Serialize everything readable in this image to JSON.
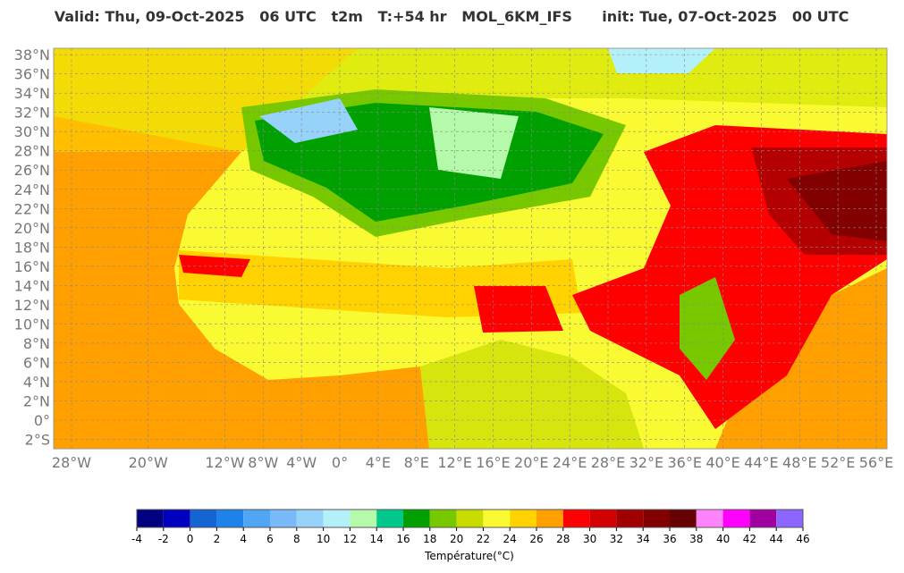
{
  "header": {
    "title": "Valid: Thu, 09-Oct-2025   06 UTC   t2m   T:+54 hr   MOL_6KM_IFS      init: Tue, 07-Oct-2025   00 UTC"
  },
  "map": {
    "lat_ticks": [
      {
        "value": 38,
        "label": "38°N"
      },
      {
        "value": 36,
        "label": "36°N"
      },
      {
        "value": 34,
        "label": "34°N"
      },
      {
        "value": 32,
        "label": "32°N"
      },
      {
        "value": 30,
        "label": "30°N"
      },
      {
        "value": 28,
        "label": "28°N"
      },
      {
        "value": 26,
        "label": "26°N"
      },
      {
        "value": 24,
        "label": "24°N"
      },
      {
        "value": 22,
        "label": "22°N"
      },
      {
        "value": 20,
        "label": "20°N"
      },
      {
        "value": 18,
        "label": "18°N"
      },
      {
        "value": 16,
        "label": "16°N"
      },
      {
        "value": 14,
        "label": "14°N"
      },
      {
        "value": 12,
        "label": "12°N"
      },
      {
        "value": 10,
        "label": "10°N"
      },
      {
        "value": 8,
        "label": "8°N"
      },
      {
        "value": 6,
        "label": "6°N"
      },
      {
        "value": 4,
        "label": "4°N"
      },
      {
        "value": 2,
        "label": "2°N"
      },
      {
        "value": 0,
        "label": "0°"
      },
      {
        "value": -2,
        "label": "2°S"
      }
    ],
    "lon_ticks": [
      {
        "value": -28,
        "label": "28°W"
      },
      {
        "value": -20,
        "label": "20°W"
      },
      {
        "value": -12,
        "label": "12°W"
      },
      {
        "value": -8,
        "label": "8°W"
      },
      {
        "value": -4,
        "label": "4°W"
      },
      {
        "value": 0,
        "label": "0°"
      },
      {
        "value": 4,
        "label": "4°E"
      },
      {
        "value": 8,
        "label": "8°E"
      },
      {
        "value": 12,
        "label": "12°E"
      },
      {
        "value": 16,
        "label": "16°E"
      },
      {
        "value": 20,
        "label": "20°E"
      },
      {
        "value": 24,
        "label": "24°E"
      },
      {
        "value": 28,
        "label": "28°E"
      },
      {
        "value": 32,
        "label": "32°E"
      },
      {
        "value": 36,
        "label": "36°E"
      },
      {
        "value": 40,
        "label": "40°E"
      },
      {
        "value": 44,
        "label": "44°E"
      },
      {
        "value": 48,
        "label": "48°E"
      },
      {
        "value": 52,
        "label": "52°E"
      },
      {
        "value": 56,
        "label": "56°E"
      }
    ],
    "grid": true
  },
  "colorbar": {
    "label": "Température(°C)",
    "ticks": [
      -4,
      -2,
      0,
      2,
      4,
      6,
      8,
      10,
      12,
      14,
      16,
      18,
      20,
      22,
      24,
      26,
      28,
      30,
      32,
      34,
      36,
      38,
      40,
      42,
      44,
      46
    ],
    "colors": [
      "#000080",
      "#0000c0",
      "#1464d2",
      "#1e82eb",
      "#50a5f5",
      "#78b9fa",
      "#96d2fa",
      "#b4f0fa",
      "#b4faaa",
      "#00c88c",
      "#00a000",
      "#78c800",
      "#c8dc00",
      "#fafa32",
      "#ffd200",
      "#ffa000",
      "#ff0000",
      "#d20000",
      "#a00000",
      "#820000",
      "#640000",
      "#ff82ff",
      "#ff00ff",
      "#a000a0",
      "#8c64ff"
    ]
  }
}
